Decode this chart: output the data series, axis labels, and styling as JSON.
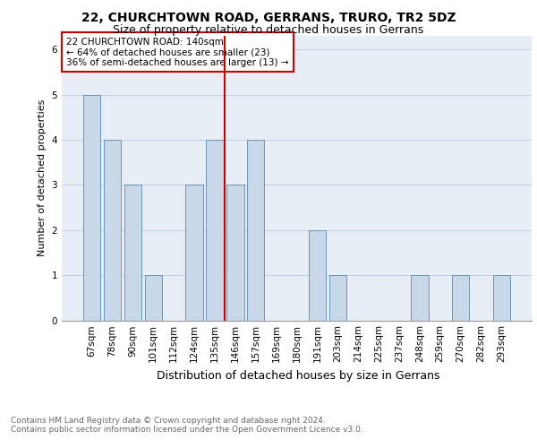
{
  "title1": "22, CHURCHTOWN ROAD, GERRANS, TRURO, TR2 5DZ",
  "title2": "Size of property relative to detached houses in Gerrans",
  "xlabel": "Distribution of detached houses by size in Gerrans",
  "ylabel": "Number of detached properties",
  "categories": [
    "67sqm",
    "78sqm",
    "90sqm",
    "101sqm",
    "112sqm",
    "124sqm",
    "135sqm",
    "146sqm",
    "157sqm",
    "169sqm",
    "180sqm",
    "191sqm",
    "203sqm",
    "214sqm",
    "225sqm",
    "237sqm",
    "248sqm",
    "259sqm",
    "270sqm",
    "282sqm",
    "293sqm"
  ],
  "values": [
    5,
    4,
    3,
    1,
    0,
    3,
    4,
    3,
    4,
    0,
    0,
    2,
    1,
    0,
    0,
    0,
    1,
    0,
    1,
    0,
    1
  ],
  "highlight_index": 6,
  "bar_color": "#c8d8e8",
  "bar_edge_color": "#5a8ab0",
  "highlight_line_color": "#cc0000",
  "annotation_text": "22 CHURCHTOWN ROAD: 140sqm\n← 64% of detached houses are smaller (23)\n36% of semi-detached houses are larger (13) →",
  "annotation_box_color": "white",
  "annotation_box_edge": "#cc0000",
  "ylim": [
    0,
    6.3
  ],
  "footer": "Contains HM Land Registry data © Crown copyright and database right 2024.\nContains public sector information licensed under the Open Government Licence v3.0.",
  "title1_fontsize": 10,
  "title2_fontsize": 9,
  "xlabel_fontsize": 9,
  "ylabel_fontsize": 8,
  "tick_fontsize": 7.5,
  "annotation_fontsize": 7.5,
  "footer_fontsize": 6.5
}
